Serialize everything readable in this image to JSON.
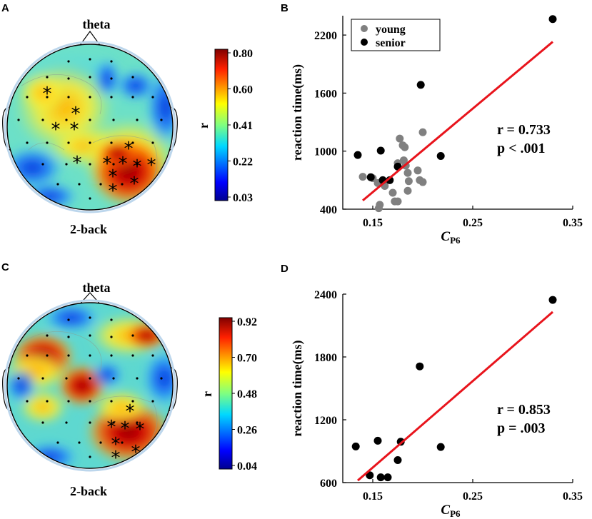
{
  "panels": [
    {
      "letter": "A",
      "title": "theta",
      "label": "2-back",
      "colorbar_label": "r",
      "colorbar_ticks": [
        "0.80",
        "0.60",
        "0.41",
        "0.22",
        "0.03"
      ]
    },
    {
      "letter": "C",
      "title": "theta",
      "label": "2-back",
      "colorbar_label": "r",
      "colorbar_ticks": [
        "0.92",
        "0.70",
        "0.48",
        "0.26",
        "0.04"
      ]
    }
  ],
  "scatter_letters": [
    "B",
    "D"
  ],
  "colors": {
    "young": "#808080",
    "senior": "#000000",
    "fit": "#e8141c"
  },
  "chart_data": [
    {
      "type": "scatter",
      "letter": "B",
      "xlabel": "CP6",
      "xlabel_main": "C",
      "xlabel_sub": "P6",
      "ylabel": "reaction time(ms)",
      "xlim": [
        0.12,
        0.35
      ],
      "ylim": [
        400,
        2400
      ],
      "xticks": [
        0.15,
        0.25,
        0.35
      ],
      "xtick_labels": [
        "0.15",
        "0.25",
        "0.35"
      ],
      "yticks": [
        400,
        1000,
        1600,
        2200
      ],
      "ytick_labels": [
        "400",
        "1000",
        "1600",
        "2200"
      ],
      "legend": [
        "young",
        "senior"
      ],
      "legend_position": "top-left",
      "annotation": [
        "r = 0.733",
        "p < .001"
      ],
      "fit_line": {
        "x": [
          0.14,
          0.33
        ],
        "y": [
          490,
          2130
        ]
      },
      "series": [
        {
          "name": "young",
          "color": "#808080",
          "points": [
            [
              0.14,
              735
            ],
            [
              0.15,
              720
            ],
            [
              0.155,
              670
            ],
            [
              0.157,
              445
            ],
            [
              0.156,
              410
            ],
            [
              0.16,
              690
            ],
            [
              0.162,
              640
            ],
            [
              0.17,
              570
            ],
            [
              0.172,
              480
            ],
            [
              0.175,
              480
            ],
            [
              0.175,
              875
            ],
            [
              0.177,
              1130
            ],
            [
              0.18,
              1060
            ],
            [
              0.182,
              1040
            ],
            [
              0.181,
              905
            ],
            [
              0.183,
              850
            ],
            [
              0.185,
              775
            ],
            [
              0.186,
              690
            ],
            [
              0.185,
              590
            ],
            [
              0.195,
              800
            ],
            [
              0.197,
              700
            ],
            [
              0.2,
              680
            ],
            [
              0.2,
              1195
            ]
          ]
        },
        {
          "name": "senior",
          "color": "#000000",
          "points": [
            [
              0.135,
              960
            ],
            [
              0.148,
              730
            ],
            [
              0.158,
              1005
            ],
            [
              0.16,
              700
            ],
            [
              0.167,
              700
            ],
            [
              0.175,
              840
            ],
            [
              0.198,
              1685
            ],
            [
              0.218,
              950
            ],
            [
              0.33,
              2365
            ]
          ]
        }
      ]
    },
    {
      "type": "scatter",
      "letter": "D",
      "xlabel": "CP6",
      "xlabel_main": "C",
      "xlabel_sub": "P6",
      "ylabel": "reaction time(ms)",
      "xlim": [
        0.12,
        0.35
      ],
      "ylim": [
        600,
        2400
      ],
      "xticks": [
        0.15,
        0.25,
        0.35
      ],
      "xtick_labels": [
        "0.15",
        "0.25",
        "0.35"
      ],
      "yticks": [
        600,
        1200,
        1800,
        2400
      ],
      "ytick_labels": [
        "600",
        "1200",
        "1800",
        "2400"
      ],
      "annotation": [
        "r = 0.853",
        "p = .003"
      ],
      "fit_line": {
        "x": [
          0.135,
          0.33
        ],
        "y": [
          620,
          2230
        ]
      },
      "series": [
        {
          "name": "senior",
          "color": "#000000",
          "points": [
            [
              0.133,
              945
            ],
            [
              0.147,
              670
            ],
            [
              0.155,
              1000
            ],
            [
              0.158,
              650
            ],
            [
              0.165,
              650
            ],
            [
              0.175,
              815
            ],
            [
              0.178,
              990
            ],
            [
              0.197,
              1710
            ],
            [
              0.218,
              940
            ],
            [
              0.33,
              2345
            ]
          ]
        }
      ]
    }
  ]
}
